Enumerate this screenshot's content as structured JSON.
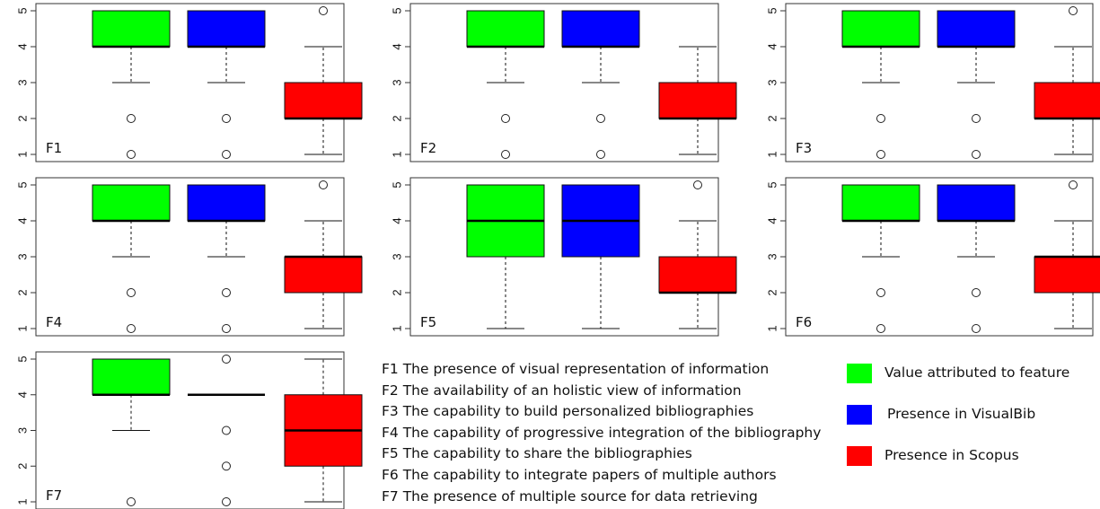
{
  "chart_data": {
    "type": "box",
    "y_ticks": [
      1,
      2,
      3,
      4,
      5
    ],
    "ylim": [
      1,
      5
    ],
    "series_colors": [
      "#00ff00",
      "#0000ff",
      "#ff0000"
    ],
    "panels": [
      {
        "label": "F1",
        "boxes": [
          {
            "q1": 4,
            "median": 4,
            "q3": 5,
            "whisker_low": 3,
            "whisker_high": 5,
            "outliers": [
              2,
              1
            ]
          },
          {
            "q1": 4,
            "median": 4,
            "q3": 5,
            "whisker_low": 3,
            "whisker_high": 5,
            "outliers": [
              2,
              1
            ]
          },
          {
            "q1": 2,
            "median": 2,
            "q3": 3,
            "whisker_low": 1,
            "whisker_high": 4,
            "outliers": [
              5
            ]
          }
        ]
      },
      {
        "label": "F2",
        "boxes": [
          {
            "q1": 4,
            "median": 4,
            "q3": 5,
            "whisker_low": 3,
            "whisker_high": 5,
            "outliers": [
              2,
              1
            ]
          },
          {
            "q1": 4,
            "median": 4,
            "q3": 5,
            "whisker_low": 3,
            "whisker_high": 5,
            "outliers": [
              2,
              1
            ]
          },
          {
            "q1": 2,
            "median": 2,
            "q3": 3,
            "whisker_low": 1,
            "whisker_high": 4,
            "outliers": []
          }
        ]
      },
      {
        "label": "F3",
        "boxes": [
          {
            "q1": 4,
            "median": 4,
            "q3": 5,
            "whisker_low": 3,
            "whisker_high": 5,
            "outliers": [
              2,
              1
            ]
          },
          {
            "q1": 4,
            "median": 4,
            "q3": 5,
            "whisker_low": 3,
            "whisker_high": 5,
            "outliers": [
              2,
              1
            ]
          },
          {
            "q1": 2,
            "median": 2,
            "q3": 3,
            "whisker_low": 1,
            "whisker_high": 4,
            "outliers": [
              5
            ]
          }
        ]
      },
      {
        "label": "F4",
        "boxes": [
          {
            "q1": 4,
            "median": 4,
            "q3": 5,
            "whisker_low": 3,
            "whisker_high": 5,
            "outliers": [
              2,
              1
            ]
          },
          {
            "q1": 4,
            "median": 4,
            "q3": 5,
            "whisker_low": 3,
            "whisker_high": 5,
            "outliers": [
              2,
              1
            ]
          },
          {
            "q1": 2,
            "median": 3,
            "q3": 3,
            "whisker_low": 1,
            "whisker_high": 4,
            "outliers": [
              5
            ]
          }
        ]
      },
      {
        "label": "F5",
        "boxes": [
          {
            "q1": 3,
            "median": 4,
            "q3": 5,
            "whisker_low": 1,
            "whisker_high": 5,
            "outliers": []
          },
          {
            "q1": 3,
            "median": 4,
            "q3": 5,
            "whisker_low": 1,
            "whisker_high": 5,
            "outliers": []
          },
          {
            "q1": 2,
            "median": 2,
            "q3": 3,
            "whisker_low": 1,
            "whisker_high": 4,
            "outliers": [
              5
            ]
          }
        ]
      },
      {
        "label": "F6",
        "boxes": [
          {
            "q1": 4,
            "median": 4,
            "q3": 5,
            "whisker_low": 3,
            "whisker_high": 5,
            "outliers": [
              2,
              1
            ]
          },
          {
            "q1": 4,
            "median": 4,
            "q3": 5,
            "whisker_low": 3,
            "whisker_high": 5,
            "outliers": [
              2,
              1
            ]
          },
          {
            "q1": 2,
            "median": 3,
            "q3": 3,
            "whisker_low": 1,
            "whisker_high": 4,
            "outliers": [
              5
            ]
          }
        ]
      },
      {
        "label": "F7",
        "boxes": [
          {
            "q1": 4,
            "median": 4,
            "q3": 5,
            "whisker_low": 3,
            "whisker_high": 5,
            "outliers": [
              1
            ]
          },
          {
            "q1": 4,
            "median": 4,
            "q3": 4,
            "whisker_low": 4,
            "whisker_high": 4,
            "outliers": [
              5,
              3,
              2,
              1
            ]
          },
          {
            "q1": 2,
            "median": 3,
            "q3": 4,
            "whisker_low": 1,
            "whisker_high": 5,
            "outliers": []
          }
        ]
      }
    ],
    "feature_descriptions": [
      "F1 The presence of visual representation of information",
      "F2 The availability of an holistic view of information",
      "F3 The capability to build personalized bibliographies",
      "F4 The capability of progressive integration of the bibliography",
      "F5 The capability to share the bibliographies",
      "F6 The capability to integrate papers of multiple authors",
      "F7 The presence of multiple source for data retrieving"
    ],
    "legend": [
      {
        "label": "Value attributed to feature",
        "color": "#00ff00"
      },
      {
        "label": "Presence in VisualBib",
        "color": "#0000ff"
      },
      {
        "label": "Presence in Scopus",
        "color": "#ff0000"
      }
    ]
  }
}
